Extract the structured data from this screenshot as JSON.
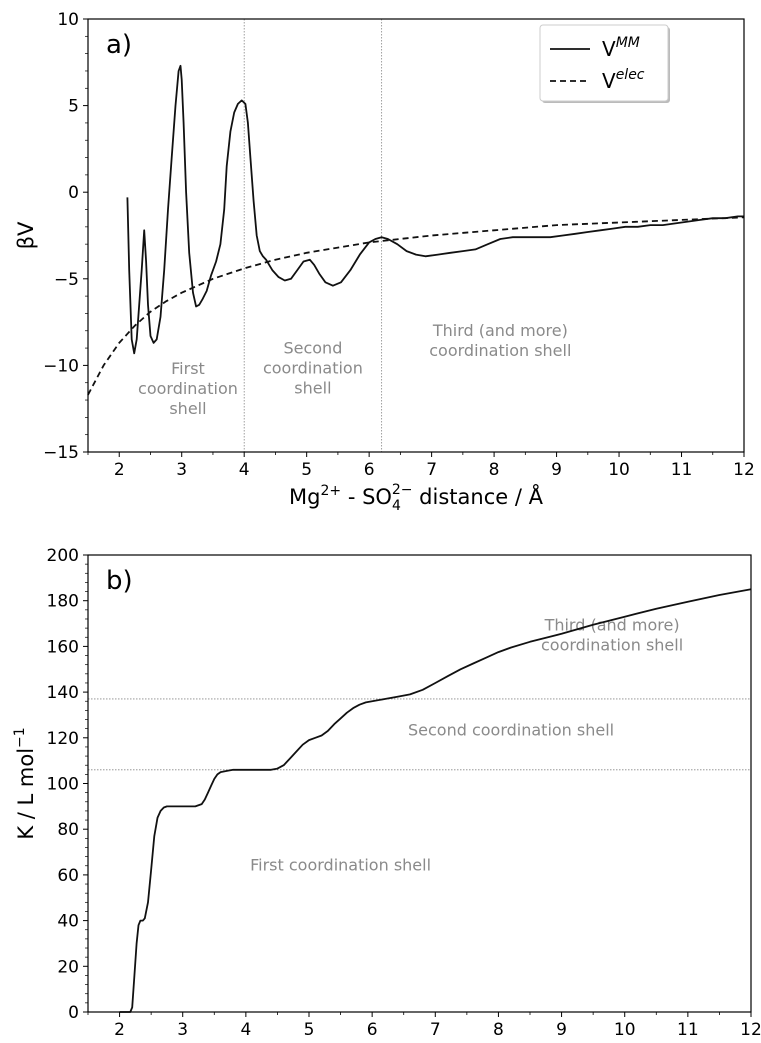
{
  "chart_data": [
    {
      "panel_label": "a)",
      "type": "line",
      "ylabel": "βV",
      "xlabel": {
        "pre": "Mg",
        "sup1": "2+",
        "mid": " - SO",
        "sub": "4",
        "sup2": "2−",
        "post": "  distance  /  Å"
      },
      "xlim": [
        1.5,
        12
      ],
      "ylim": [
        -15,
        10
      ],
      "xticks": [
        2,
        3,
        4,
        5,
        6,
        7,
        8,
        9,
        10,
        11,
        12
      ],
      "yticks": [
        -15,
        -10,
        -5,
        0,
        5,
        10
      ],
      "ytick_labels": [
        "−15",
        "−10",
        "−5",
        "0",
        "5",
        "10"
      ],
      "vlines": [
        4.0,
        6.2
      ],
      "legend": {
        "position": "top-right",
        "entries": [
          {
            "base": "V",
            "sup": "MM",
            "style": "solid"
          },
          {
            "base": "V",
            "sup": "elec",
            "style": "dashed"
          }
        ]
      },
      "annotations": [
        {
          "lines": [
            "First",
            "coordination",
            "shell"
          ],
          "x": 3.1,
          "y": -10.5
        },
        {
          "lines": [
            "Second",
            "coordination",
            "shell"
          ],
          "x": 5.1,
          "y": -9.3
        },
        {
          "lines": [
            "Third (and more)",
            "coordination shell"
          ],
          "x": 8.1,
          "y": -8.3
        }
      ],
      "series": [
        {
          "style": "solid",
          "x": [
            2.13,
            2.16,
            2.2,
            2.24,
            2.28,
            2.32,
            2.36,
            2.4,
            2.43,
            2.46,
            2.5,
            2.55,
            2.6,
            2.66,
            2.72,
            2.78,
            2.84,
            2.9,
            2.95,
            2.98,
            3.0,
            3.03,
            3.07,
            3.12,
            3.18,
            3.23,
            3.28,
            3.33,
            3.4,
            3.47,
            3.55,
            3.62,
            3.68,
            3.72,
            3.78,
            3.84,
            3.9,
            3.96,
            4.02,
            4.06,
            4.1,
            4.15,
            4.2,
            4.25,
            4.3,
            4.35,
            4.4,
            4.45,
            4.55,
            4.65,
            4.75,
            4.85,
            4.95,
            5.05,
            5.12,
            5.2,
            5.3,
            5.42,
            5.55,
            5.7,
            5.85,
            6.0,
            6.1,
            6.2,
            6.3,
            6.45,
            6.6,
            6.75,
            6.9,
            7.1,
            7.3,
            7.5,
            7.7,
            7.9,
            8.1,
            8.3,
            8.5,
            8.7,
            8.9,
            9.1,
            9.3,
            9.5,
            9.7,
            9.9,
            10.1,
            10.3,
            10.5,
            10.7,
            10.9,
            11.1,
            11.3,
            11.5,
            11.7,
            11.9,
            12.0
          ],
          "y": [
            -0.3,
            -4.5,
            -8.5,
            -9.3,
            -8.5,
            -6.5,
            -4.5,
            -2.2,
            -4.0,
            -6.5,
            -8.3,
            -8.7,
            -8.5,
            -7.2,
            -4.5,
            -1.0,
            2.0,
            5.0,
            7.0,
            7.3,
            6.5,
            4.0,
            0.0,
            -3.5,
            -5.8,
            -6.6,
            -6.5,
            -6.2,
            -5.7,
            -4.8,
            -4.0,
            -3.0,
            -1.0,
            1.5,
            3.5,
            4.6,
            5.1,
            5.3,
            5.1,
            4.0,
            2.0,
            -0.5,
            -2.5,
            -3.4,
            -3.7,
            -3.9,
            -4.2,
            -4.5,
            -4.9,
            -5.1,
            -5.0,
            -4.5,
            -4.0,
            -3.9,
            -4.2,
            -4.7,
            -5.2,
            -5.4,
            -5.2,
            -4.5,
            -3.6,
            -2.9,
            -2.7,
            -2.6,
            -2.7,
            -3.0,
            -3.4,
            -3.6,
            -3.7,
            -3.6,
            -3.5,
            -3.4,
            -3.3,
            -3.0,
            -2.7,
            -2.6,
            -2.6,
            -2.6,
            -2.6,
            -2.5,
            -2.4,
            -2.3,
            -2.2,
            -2.1,
            -2.0,
            -2.0,
            -1.9,
            -1.9,
            -1.8,
            -1.7,
            -1.6,
            -1.5,
            -1.5,
            -1.4,
            -1.4
          ]
        },
        {
          "style": "dashed",
          "x": [
            1.5,
            1.75,
            2.0,
            2.25,
            2.5,
            2.75,
            3.0,
            3.5,
            4.0,
            4.5,
            5.0,
            5.5,
            6.0,
            7.0,
            8.0,
            9.0,
            10.0,
            11.0,
            12.0
          ],
          "y": [
            -11.7,
            -10.0,
            -8.7,
            -7.7,
            -6.9,
            -6.3,
            -5.8,
            -5.0,
            -4.4,
            -3.9,
            -3.5,
            -3.2,
            -2.9,
            -2.5,
            -2.2,
            -1.9,
            -1.75,
            -1.6,
            -1.45
          ]
        }
      ]
    },
    {
      "panel_label": "b)",
      "type": "line",
      "ylabel": "K  /  L mol",
      "ylabel_sup": "−1",
      "xlabel": {
        "pre": "Mg",
        "sup1": "2+",
        "mid": " - SO",
        "sub": "4",
        "sup2": "2−",
        "post": "  distance  /  Å"
      },
      "xlim": [
        1.5,
        12
      ],
      "ylim": [
        0,
        200
      ],
      "xticks": [
        2,
        3,
        4,
        5,
        6,
        7,
        8,
        9,
        10,
        11,
        12
      ],
      "yticks": [
        0,
        20,
        40,
        60,
        80,
        100,
        120,
        140,
        160,
        180,
        200
      ],
      "ytick_labels": [
        "0",
        "20",
        "40",
        "60",
        "80",
        "100",
        "120",
        "140",
        "160",
        "180",
        "200"
      ],
      "hlines": [
        106,
        137
      ],
      "annotations": [
        {
          "lines": [
            "Third (and more)",
            "coordination shell"
          ],
          "x": 9.8,
          "y": 167
        },
        {
          "lines": [
            "Second coordination shell"
          ],
          "x": 8.2,
          "y": 121
        },
        {
          "lines": [
            "First coordination shell"
          ],
          "x": 5.5,
          "y": 62
        }
      ],
      "series": [
        {
          "style": "solid",
          "x": [
            2.0,
            2.17,
            2.2,
            2.23,
            2.27,
            2.3,
            2.33,
            2.37,
            2.4,
            2.45,
            2.5,
            2.55,
            2.6,
            2.65,
            2.7,
            2.75,
            2.8,
            2.9,
            3.0,
            3.1,
            3.2,
            3.3,
            3.35,
            3.4,
            3.45,
            3.5,
            3.55,
            3.6,
            3.7,
            3.8,
            4.0,
            4.2,
            4.4,
            4.5,
            4.6,
            4.7,
            4.8,
            4.9,
            5.0,
            5.1,
            5.2,
            5.3,
            5.4,
            5.5,
            5.6,
            5.7,
            5.8,
            5.9,
            6.0,
            6.2,
            6.4,
            6.6,
            6.8,
            7.0,
            7.2,
            7.4,
            7.6,
            7.8,
            8.0,
            8.2,
            8.5,
            9.0,
            9.5,
            10.0,
            10.5,
            11.0,
            11.5,
            12.0
          ],
          "y": [
            0,
            0,
            2,
            14,
            30,
            38,
            40,
            40,
            41,
            48,
            62,
            77,
            85,
            88,
            89.5,
            90,
            90,
            90,
            90,
            90,
            90,
            91,
            93,
            96,
            99,
            102,
            104,
            105,
            105.5,
            106,
            106,
            106,
            106,
            106.5,
            108,
            111,
            114,
            117,
            119,
            120,
            121,
            123,
            126,
            128.5,
            131,
            133,
            134.5,
            135.5,
            136,
            137,
            138,
            139,
            141,
            144,
            147,
            150,
            152.5,
            155,
            157.5,
            159.5,
            162,
            165.5,
            169.5,
            173,
            176.5,
            179.5,
            182.5,
            185
          ]
        }
      ]
    }
  ]
}
